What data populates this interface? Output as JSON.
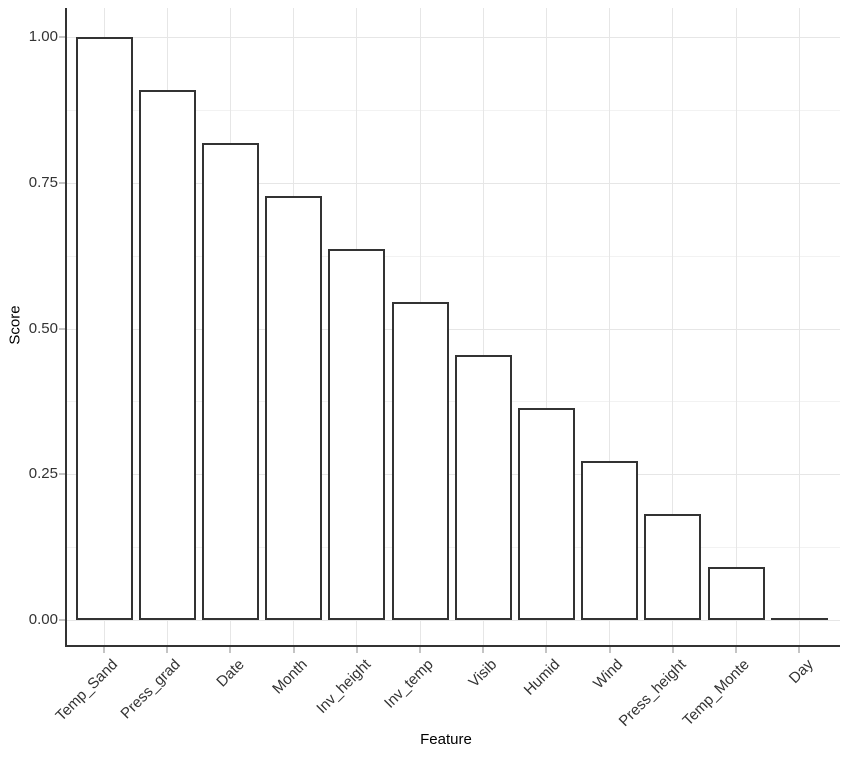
{
  "chart_data": {
    "type": "bar",
    "title": "",
    "xlabel": "Feature",
    "ylabel": "Score",
    "categories": [
      "Temp_Sand",
      "Press_grad",
      "Date",
      "Month",
      "Inv_height",
      "Inv_temp",
      "Visib",
      "Humid",
      "Wind",
      "Press_height",
      "Temp_Monte",
      "Day"
    ],
    "values": [
      1.0,
      0.909,
      0.818,
      0.727,
      0.636,
      0.545,
      0.455,
      0.364,
      0.273,
      0.182,
      0.091,
      0.0
    ],
    "ylim": [
      -0.05,
      1.05
    ],
    "y_ticks": [
      {
        "v": 0.0,
        "label": "0.00"
      },
      {
        "v": 0.25,
        "label": "0.25"
      },
      {
        "v": 0.5,
        "label": "0.50"
      },
      {
        "v": 0.75,
        "label": "0.75"
      },
      {
        "v": 1.0,
        "label": "1.00"
      }
    ],
    "y_minor_gridlines": [
      0.125,
      0.375,
      0.625,
      0.875
    ],
    "grid": true,
    "legend": "none",
    "colors": {
      "bar_fill": "#ffffff",
      "bar_border": "#333333",
      "axis_line": "#333333",
      "grid_major": "#e6e6e6",
      "grid_minor": "#f2f2f2",
      "tick_mark": "#c4c4c4",
      "tick_label": "#333333",
      "axis_title": "#000000",
      "background": "#ffffff"
    }
  }
}
